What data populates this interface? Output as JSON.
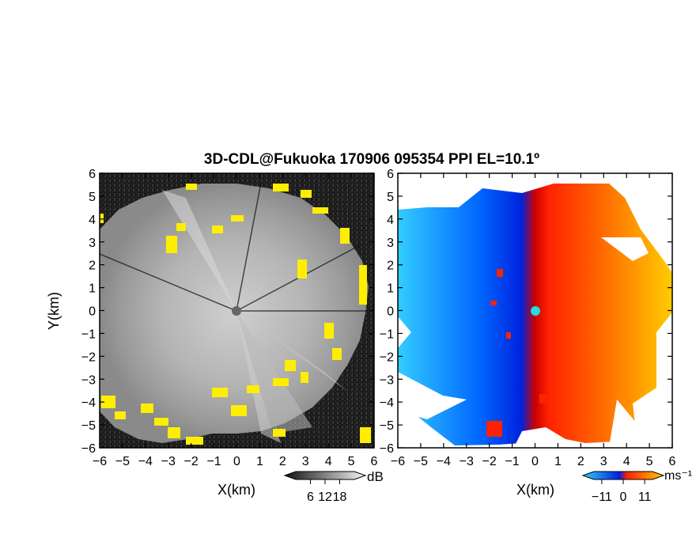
{
  "title": "3D-CDL@Fukuoka 170906 095354 PPI EL=10.1º",
  "chart_data": [
    {
      "type": "heatmap",
      "panel": "reflectivity",
      "xlabel": "X(km)",
      "ylabel": "Y(km)",
      "xlim": [
        -6,
        6
      ],
      "ylim": [
        -6,
        6
      ],
      "xticks": [
        "−6",
        "−5",
        "−4",
        "−3",
        "−2",
        "−1",
        "0",
        "1",
        "2",
        "3",
        "4",
        "5",
        "6"
      ],
      "yticks": [
        "−6",
        "−5",
        "−4",
        "−3",
        "−2",
        "−1",
        "0",
        "1",
        "2",
        "3",
        "4",
        "5",
        "6"
      ],
      "colormap": "grayscale",
      "edge_color": "#ffee00",
      "background_color": "#141414",
      "colorbar": {
        "label": "dB",
        "ticks": [
          "6",
          "12",
          "18"
        ],
        "range": [
          0,
          24
        ]
      }
    },
    {
      "type": "heatmap",
      "panel": "radial-velocity",
      "xlabel": "X(km)",
      "xlim": [
        -6,
        6
      ],
      "ylim": [
        -6,
        6
      ],
      "xticks": [
        "−6",
        "−5",
        "−4",
        "−3",
        "−2",
        "−1",
        "0",
        "1",
        "2",
        "3",
        "4",
        "5",
        "6"
      ],
      "yticks": [
        "−6",
        "−5",
        "−4",
        "−3",
        "−2",
        "−1",
        "0",
        "1",
        "2",
        "3",
        "4",
        "5",
        "6"
      ],
      "colormap": "cyan-blue-red-yellow",
      "negative_colors": [
        "#33ccff",
        "#0033ee"
      ],
      "positive_colors": [
        "#ff2200",
        "#ffcc00"
      ],
      "center_marker_color": "#22dddd",
      "colorbar": {
        "label": "ms⁻¹",
        "ticks": [
          "−11",
          "0",
          "11"
        ],
        "range": [
          -15,
          15
        ]
      }
    }
  ]
}
